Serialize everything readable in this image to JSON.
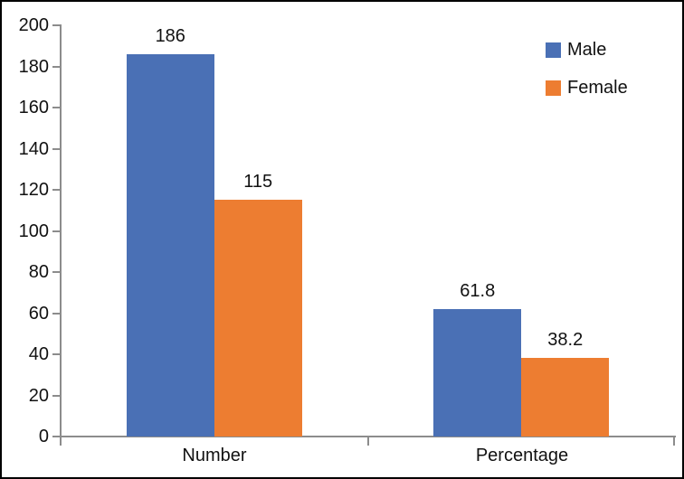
{
  "chart_data": {
    "type": "bar",
    "categories": [
      "Number",
      "Percentage"
    ],
    "series": [
      {
        "name": "Male",
        "color": "#4A70B5",
        "values": [
          186,
          61.8
        ]
      },
      {
        "name": "Female",
        "color": "#ED7D31",
        "values": [
          115,
          38.2
        ]
      }
    ],
    "data_labels": [
      "186",
      "115",
      "61.8",
      "38.2"
    ],
    "title": "",
    "xlabel": "",
    "ylabel": "",
    "ylim": [
      0,
      200
    ],
    "ytick_step": 20,
    "ytick_labels": [
      "0",
      "20",
      "40",
      "60",
      "80",
      "100",
      "120",
      "140",
      "160",
      "180",
      "200"
    ],
    "grid": "off",
    "legend_position": "top-right",
    "legend": {
      "male_label": "Male",
      "female_label": "Female"
    },
    "colors": {
      "male": "#4A70B5",
      "female": "#ED7D31",
      "axis": "#8C8C8C",
      "text": "#111111",
      "frame_border": "#000000",
      "background": "#FFFFFF"
    }
  }
}
